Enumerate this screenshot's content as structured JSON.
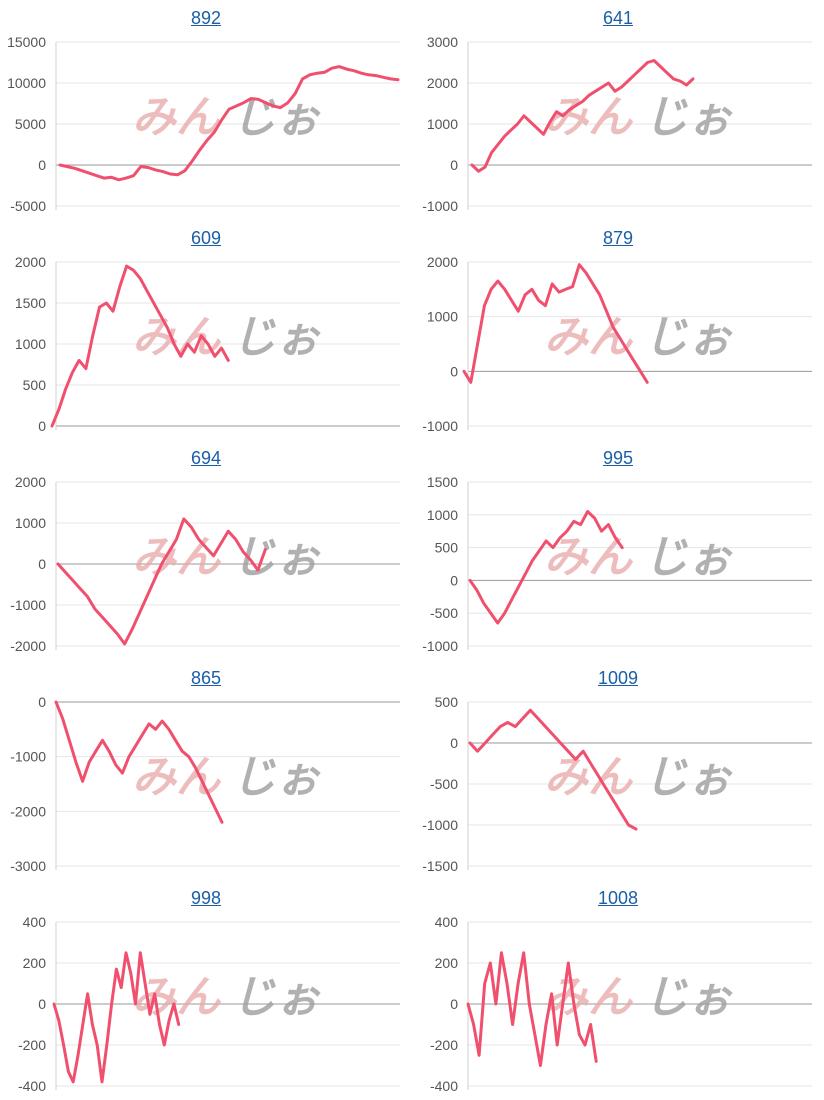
{
  "watermark": {
    "part1": "みん",
    "part2": "じぉ",
    "color1": "#e8a8a8",
    "color2": "#9e9e9e"
  },
  "colors": {
    "series": "#f0506e",
    "link": "#1a5fa8",
    "grid": "#e6e6e6"
  },
  "chart_data": [
    {
      "type": "line",
      "title": "892",
      "ylim": [
        -5000,
        15000
      ],
      "yticks": [
        15000,
        10000,
        5000,
        0,
        -5000
      ],
      "grid": true,
      "series": [
        {
          "values": [
            0,
            -200,
            -400,
            -700,
            -1000,
            -1300,
            -1600,
            -1500,
            -1800,
            -1600,
            -1300,
            -200,
            -300,
            -600,
            -800,
            -1100,
            -1200,
            -700,
            500,
            1800,
            3000,
            4000,
            5500,
            6800,
            7200,
            7600,
            8100,
            8000,
            7600,
            7200,
            7000,
            7600,
            8700,
            10500,
            11000,
            11200,
            11300,
            11800,
            12000,
            11700,
            11500,
            11200,
            11000,
            10900,
            10700,
            10500,
            10400
          ]
        }
      ]
    },
    {
      "type": "line",
      "title": "641",
      "ylim": [
        -1000,
        3000
      ],
      "yticks": [
        3000,
        2000,
        1000,
        0,
        -1000
      ],
      "grid": true,
      "series": [
        {
          "values": [
            0,
            -150,
            -50,
            300,
            500,
            700,
            850,
            1000,
            1200,
            1050,
            900,
            750,
            1050,
            1300,
            1200,
            1350,
            1450,
            1550,
            1700,
            1800,
            1900,
            2000,
            1800,
            1900,
            2050,
            2200,
            2350,
            2500,
            2550,
            2400,
            2250,
            2100,
            2050,
            1950,
            2100
          ]
        }
      ]
    },
    {
      "type": "line",
      "title": "609",
      "ylim": [
        0,
        2000
      ],
      "yticks": [
        2000,
        1500,
        1000,
        500,
        0
      ],
      "grid": true,
      "series": [
        {
          "values": [
            0,
            200,
            450,
            650,
            800,
            700,
            1100,
            1450,
            1500,
            1400,
            1700,
            1950,
            1900,
            1800,
            1650,
            1500,
            1350,
            1200,
            1000,
            850,
            1000,
            900,
            1100,
            1000,
            850,
            950,
            800
          ]
        }
      ]
    },
    {
      "type": "line",
      "title": "879",
      "ylim": [
        -1000,
        2000
      ],
      "yticks": [
        2000,
        1000,
        0,
        -1000
      ],
      "grid": true,
      "series": [
        {
          "values": [
            0,
            -200,
            500,
            1200,
            1500,
            1650,
            1500,
            1300,
            1100,
            1400,
            1500,
            1300,
            1200,
            1600,
            1450,
            1500,
            1550,
            1950,
            1800,
            1600,
            1400,
            1100,
            800,
            600,
            400,
            200,
            0,
            -200
          ]
        }
      ]
    },
    {
      "type": "line",
      "title": "694",
      "ylim": [
        -2000,
        2000
      ],
      "yticks": [
        2000,
        1000,
        0,
        -1000,
        -2000
      ],
      "grid": true,
      "series": [
        {
          "values": [
            0,
            -200,
            -400,
            -600,
            -800,
            -1100,
            -1300,
            -1500,
            -1700,
            -1950,
            -1600,
            -1200,
            -800,
            -400,
            0,
            300,
            600,
            1100,
            900,
            600,
            400,
            200,
            500,
            800,
            600,
            300,
            100,
            -150,
            350
          ]
        }
      ]
    },
    {
      "type": "line",
      "title": "995",
      "ylim": [
        -1000,
        1500
      ],
      "yticks": [
        1500,
        1000,
        500,
        0,
        -500,
        -1000
      ],
      "grid": true,
      "series": [
        {
          "values": [
            0,
            -150,
            -350,
            -500,
            -650,
            -500,
            -300,
            -100,
            100,
            300,
            450,
            600,
            500,
            650,
            750,
            900,
            850,
            1050,
            950,
            750,
            850,
            650,
            500
          ]
        }
      ]
    },
    {
      "type": "line",
      "title": "865",
      "ylim": [
        -3000,
        0
      ],
      "yticks": [
        0,
        -1000,
        -2000,
        -3000
      ],
      "grid": true,
      "series": [
        {
          "values": [
            0,
            -300,
            -700,
            -1100,
            -1450,
            -1100,
            -900,
            -700,
            -900,
            -1150,
            -1300,
            -1000,
            -800,
            -600,
            -400,
            -500,
            -350,
            -500,
            -700,
            -900,
            -1000,
            -1200,
            -1450,
            -1700,
            -1950,
            -2200
          ]
        }
      ]
    },
    {
      "type": "line",
      "title": "1009",
      "ylim": [
        -1500,
        500
      ],
      "yticks": [
        500,
        0,
        -500,
        -1000,
        -1500
      ],
      "grid": true,
      "series": [
        {
          "values": [
            0,
            -100,
            0,
            100,
            200,
            250,
            200,
            300,
            400,
            300,
            200,
            100,
            0,
            -100,
            -200,
            -100,
            -250,
            -400,
            -550,
            -700,
            -850,
            -1000,
            -1050
          ]
        }
      ]
    },
    {
      "type": "line",
      "title": "998",
      "ylim": [
        -400,
        400
      ],
      "yticks": [
        400,
        200,
        0,
        -200,
        -400
      ],
      "grid": true,
      "series": [
        {
          "values": [
            0,
            -80,
            -200,
            -330,
            -380,
            -250,
            -100,
            50,
            -100,
            -200,
            -380,
            -200,
            0,
            170,
            80,
            250,
            150,
            0,
            250,
            100,
            -50,
            50,
            -100,
            -200,
            -80,
            0,
            -100
          ]
        }
      ]
    },
    {
      "type": "line",
      "title": "1008",
      "ylim": [
        -400,
        400
      ],
      "yticks": [
        400,
        200,
        0,
        -200,
        -400
      ],
      "grid": true,
      "series": [
        {
          "values": [
            0,
            -100,
            -250,
            100,
            200,
            0,
            250,
            100,
            -100,
            100,
            250,
            0,
            -150,
            -300,
            -100,
            50,
            -200,
            0,
            200,
            0,
            -150,
            -200,
            -100,
            -280
          ]
        }
      ]
    }
  ]
}
